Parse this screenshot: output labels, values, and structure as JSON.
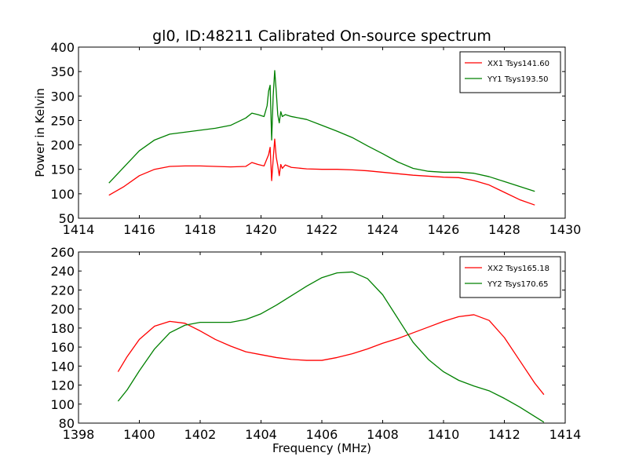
{
  "chart_data": [
    {
      "type": "line",
      "title": "gl0, ID:48211 Calibrated On-source spectrum",
      "xlabel": "",
      "ylabel": "Power in Kelvin",
      "xlim": [
        1414,
        1430
      ],
      "ylim": [
        50,
        400
      ],
      "xticks": [
        1414,
        1416,
        1418,
        1420,
        1422,
        1424,
        1426,
        1428,
        1430
      ],
      "yticks": [
        50,
        100,
        150,
        200,
        250,
        300,
        350,
        400
      ],
      "legend_position": "top-right",
      "grid": false,
      "series": [
        {
          "name": "XX1 Tsys141.60",
          "color": "#ff0000",
          "x": [
            1415.0,
            1415.5,
            1416.0,
            1416.5,
            1417.0,
            1417.5,
            1418.0,
            1418.5,
            1419.0,
            1419.5,
            1419.7,
            1419.9,
            1420.1,
            1420.25,
            1420.3,
            1420.35,
            1420.4,
            1420.45,
            1420.5,
            1420.55,
            1420.6,
            1420.65,
            1420.7,
            1420.8,
            1421.0,
            1421.5,
            1422.0,
            1422.5,
            1423.0,
            1423.5,
            1424.0,
            1424.5,
            1425.0,
            1425.5,
            1426.0,
            1426.5,
            1427.0,
            1427.5,
            1428.0,
            1428.5,
            1429.0
          ],
          "values": [
            97,
            115,
            137,
            150,
            156,
            157,
            157,
            156,
            155,
            156,
            164,
            160,
            157,
            180,
            195,
            127,
            170,
            212,
            175,
            158,
            137,
            160,
            152,
            159,
            154,
            151,
            150,
            150,
            149,
            147,
            144,
            141,
            138,
            136,
            134,
            133,
            127,
            118,
            103,
            88,
            77
          ]
        },
        {
          "name": "YY1 Tsys193.50",
          "color": "#008000",
          "x": [
            1415.0,
            1415.5,
            1416.0,
            1416.5,
            1417.0,
            1417.5,
            1418.0,
            1418.5,
            1419.0,
            1419.5,
            1419.7,
            1419.9,
            1420.1,
            1420.2,
            1420.25,
            1420.3,
            1420.35,
            1420.4,
            1420.45,
            1420.5,
            1420.55,
            1420.6,
            1420.65,
            1420.7,
            1420.8,
            1421.0,
            1421.5,
            1422.0,
            1422.5,
            1423.0,
            1423.5,
            1424.0,
            1424.5,
            1425.0,
            1425.5,
            1426.0,
            1426.5,
            1427.0,
            1427.5,
            1428.0,
            1428.5,
            1429.0
          ],
          "values": [
            122,
            155,
            188,
            210,
            222,
            226,
            230,
            234,
            240,
            255,
            265,
            262,
            258,
            280,
            310,
            322,
            210,
            300,
            352,
            310,
            262,
            245,
            268,
            258,
            262,
            258,
            252,
            240,
            228,
            215,
            198,
            182,
            165,
            152,
            146,
            144,
            144,
            142,
            135,
            125,
            115,
            105
          ]
        }
      ]
    },
    {
      "type": "line",
      "title": "",
      "xlabel": "Frequency (MHz)",
      "ylabel": "",
      "xlim": [
        1398,
        1414
      ],
      "ylim": [
        80,
        260
      ],
      "xticks": [
        1398,
        1400,
        1402,
        1404,
        1406,
        1408,
        1410,
        1412,
        1414
      ],
      "yticks": [
        80,
        100,
        120,
        140,
        160,
        180,
        200,
        220,
        240,
        260
      ],
      "legend_position": "top-right",
      "grid": false,
      "series": [
        {
          "name": "XX2 Tsys165.18",
          "color": "#ff0000",
          "x": [
            1399.3,
            1399.6,
            1400.0,
            1400.5,
            1401.0,
            1401.5,
            1402.0,
            1402.5,
            1403.0,
            1403.5,
            1404.0,
            1404.5,
            1405.0,
            1405.5,
            1406.0,
            1406.5,
            1407.0,
            1407.5,
            1408.0,
            1408.5,
            1409.0,
            1409.5,
            1410.0,
            1410.5,
            1411.0,
            1411.5,
            1412.0,
            1412.5,
            1413.0,
            1413.3
          ],
          "values": [
            134,
            150,
            168,
            182,
            187,
            185,
            177,
            168,
            161,
            155,
            152,
            149,
            147,
            146,
            146,
            149,
            153,
            158,
            164,
            169,
            175,
            181,
            187,
            192,
            194,
            188,
            170,
            146,
            122,
            110
          ]
        },
        {
          "name": "YY2 Tsys170.65",
          "color": "#008000",
          "x": [
            1399.3,
            1399.6,
            1400.0,
            1400.5,
            1401.0,
            1401.5,
            1402.0,
            1402.5,
            1403.0,
            1403.5,
            1404.0,
            1404.5,
            1405.0,
            1405.5,
            1406.0,
            1406.5,
            1407.0,
            1407.5,
            1408.0,
            1408.5,
            1409.0,
            1409.5,
            1410.0,
            1410.5,
            1411.0,
            1411.5,
            1412.0,
            1412.5,
            1413.0,
            1413.3
          ],
          "values": [
            103,
            115,
            135,
            158,
            175,
            183,
            186,
            186,
            186,
            189,
            195,
            204,
            214,
            224,
            233,
            238,
            239,
            232,
            215,
            190,
            165,
            147,
            134,
            125,
            119,
            114,
            106,
            97,
            87,
            81
          ]
        }
      ]
    }
  ]
}
